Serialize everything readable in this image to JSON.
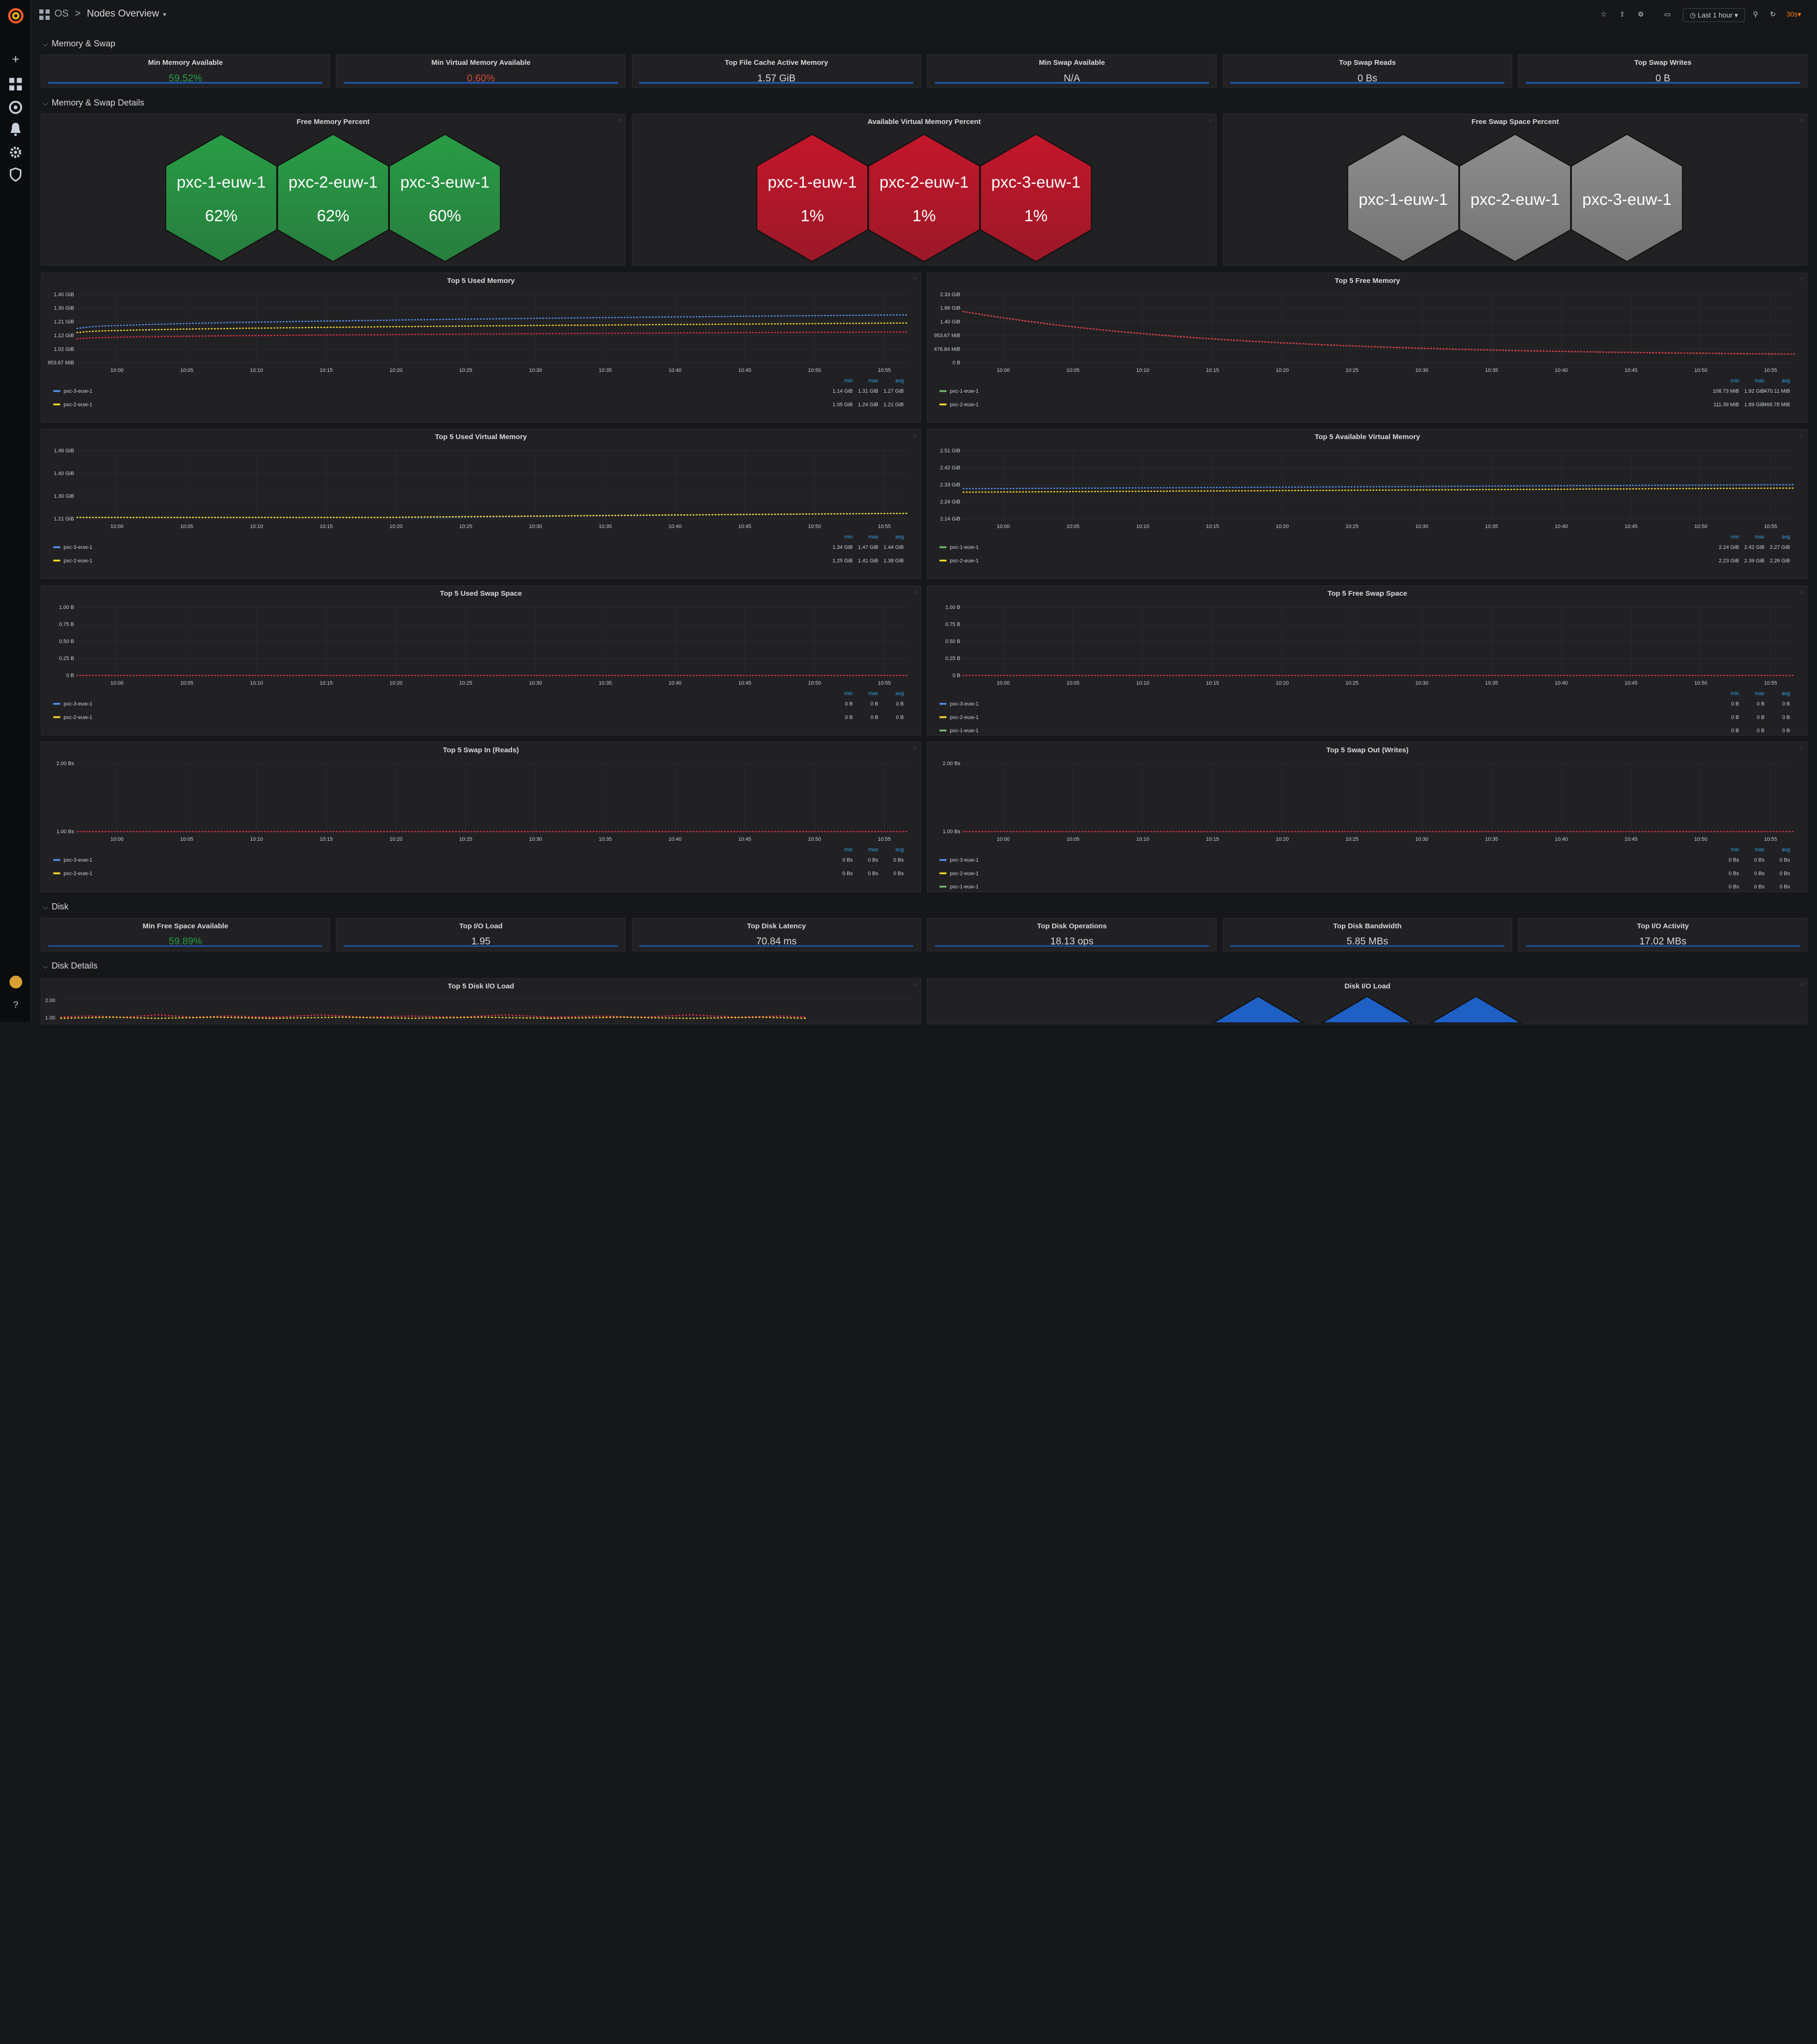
{
  "breadcrumb": {
    "folder": "OS",
    "sep": ">",
    "title": "Nodes Overview"
  },
  "toolbar": {
    "time_range": "Last 1 hour",
    "refresh": "30s"
  },
  "sections": {
    "memory_swap": "Memory & Swap",
    "memory_swap_details": "Memory & Swap Details",
    "disk": "Disk",
    "disk_details": "Disk Details"
  },
  "stats_mem": [
    {
      "title": "Min Memory Available",
      "value": "59.52%",
      "color": "#299c46"
    },
    {
      "title": "Min Virtual Memory Available",
      "value": "0.60%",
      "color": "#d44a3a"
    },
    {
      "title": "Top File Cache Active Memory",
      "value": "1.57 GiB",
      "color": "#d8d9da"
    },
    {
      "title": "Min Swap Available",
      "value": "N/A",
      "color": "#d8d9da"
    },
    {
      "title": "Top Swap Reads",
      "value": "0 Bs",
      "color": "#d8d9da"
    },
    {
      "title": "Top Swap Writes",
      "value": "0 B",
      "color": "#d8d9da"
    }
  ],
  "stats_disk": [
    {
      "title": "Min Free Space Available",
      "value": "59.89%",
      "color": "#299c46"
    },
    {
      "title": "Top I/O Load",
      "value": "1.95",
      "color": "#d8d9da"
    },
    {
      "title": "Top Disk Latency",
      "value": "70.84 ms",
      "color": "#d8d9da"
    },
    {
      "title": "Top Disk Operations",
      "value": "18.13 ops",
      "color": "#d8d9da"
    },
    {
      "title": "Top Disk Bandwidth",
      "value": "5.85 MBs",
      "color": "#d8d9da"
    },
    {
      "title": "Top I/O Activity",
      "value": "17.02 MBs",
      "color": "#d8d9da"
    }
  ],
  "hexpanels": [
    {
      "title": "Free Memory Percent",
      "color": "#299c46",
      "nodes": [
        {
          "name": "pxc-1-euw-1",
          "value": "62%"
        },
        {
          "name": "pxc-2-euw-1",
          "value": "62%"
        },
        {
          "name": "pxc-3-euw-1",
          "value": "60%"
        }
      ]
    },
    {
      "title": "Available Virtual Memory Percent",
      "color": "#c4162a",
      "nodes": [
        {
          "name": "pxc-1-euw-1",
          "value": "1%"
        },
        {
          "name": "pxc-2-euw-1",
          "value": "1%"
        },
        {
          "name": "pxc-3-euw-1",
          "value": "1%"
        }
      ]
    },
    {
      "title": "Free Swap Space Percent",
      "color": "#8e8e8e",
      "nodes": [
        {
          "name": "pxc-1-euw-1",
          "value": ""
        },
        {
          "name": "pxc-2-euw-1",
          "value": ""
        },
        {
          "name": "pxc-3-euw-1",
          "value": ""
        }
      ]
    }
  ],
  "xticks": [
    "10:00",
    "10:05",
    "10:10",
    "10:15",
    "10:20",
    "10:25",
    "10:30",
    "10:35",
    "10:40",
    "10:45",
    "10:50",
    "10:55"
  ],
  "legend_headers": [
    "min",
    "max",
    "avg"
  ],
  "graphs": [
    {
      "title": "Top 5 Used Memory",
      "yticks": [
        "1.40 GiB",
        "1.30 GiB",
        "1.21 GiB",
        "1.12 GiB",
        "1.02 GiB",
        "953.67 MiB"
      ],
      "legend": [
        {
          "name": "pxc-3-euw-1",
          "color": "#5794f2",
          "vals": [
            "1.14 GiB",
            "1.31 GiB",
            "1.27 GiB"
          ]
        },
        {
          "name": "pxc-2-euw-1",
          "color": "#fade2a",
          "vals": [
            "1.05 GiB",
            "1.24 GiB",
            "1.21 GiB"
          ]
        }
      ]
    },
    {
      "title": "Top 5 Free Memory",
      "yticks": [
        "2.33 GiB",
        "1.86 GiB",
        "1.40 GiB",
        "953.67 MiB",
        "476.84 MiB",
        "0 B"
      ],
      "legend": [
        {
          "name": "pxc-1-euw-1",
          "color": "#73bf69",
          "vals": [
            "108.73 MiB",
            "1.92 GiB",
            "470.11 MiB"
          ]
        },
        {
          "name": "pxc-2-euw-1",
          "color": "#fade2a",
          "vals": [
            "111.39 MiB",
            "1.89 GiB",
            "468.78 MiB"
          ]
        }
      ]
    },
    {
      "title": "Top 5 Used Virtual Memory",
      "yticks": [
        "1.49 GiB",
        "1.40 GiB",
        "1.30 GiB",
        "1.21 GiB"
      ],
      "legend": [
        {
          "name": "pxc-3-euw-1",
          "color": "#5794f2",
          "vals": [
            "1.34 GiB",
            "1.47 GiB",
            "1.44 GiB"
          ]
        },
        {
          "name": "pxc-2-euw-1",
          "color": "#fade2a",
          "vals": [
            "1.25 GiB",
            "1.41 GiB",
            "1.38 GiB"
          ]
        }
      ]
    },
    {
      "title": "Top 5 Available Virtual Memory",
      "yticks": [
        "2.51 GiB",
        "2.42 GiB",
        "2.33 GiB",
        "2.24 GiB",
        "2.14 GiB"
      ],
      "legend": [
        {
          "name": "pxc-1-euw-1",
          "color": "#73bf69",
          "vals": [
            "2.24 GiB",
            "2.42 GiB",
            "2.27 GiB"
          ]
        },
        {
          "name": "pxc-2-euw-1",
          "color": "#fade2a",
          "vals": [
            "2.23 GiB",
            "2.39 GiB",
            "2.26 GiB"
          ]
        }
      ]
    },
    {
      "title": "Top 5 Used Swap Space",
      "yticks": [
        "1.00 B",
        "0.75 B",
        "0.50 B",
        "0.25 B",
        "0 B"
      ],
      "legend": [
        {
          "name": "pxc-3-euw-1",
          "color": "#5794f2",
          "vals": [
            "0 B",
            "0 B",
            "0 B"
          ]
        },
        {
          "name": "pxc-2-euw-1",
          "color": "#fade2a",
          "vals": [
            "0 B",
            "0 B",
            "0 B"
          ]
        }
      ]
    },
    {
      "title": "Top 5 Free Swap Space",
      "yticks": [
        "1.00 B",
        "0.75 B",
        "0.50 B",
        "0.25 B",
        "0 B"
      ],
      "legend": [
        {
          "name": "pxc-3-euw-1",
          "color": "#5794f2",
          "vals": [
            "0 B",
            "0 B",
            "0 B"
          ]
        },
        {
          "name": "pxc-2-euw-1",
          "color": "#fade2a",
          "vals": [
            "0 B",
            "0 B",
            "0 B"
          ]
        },
        {
          "name": "pxc-1-euw-1",
          "color": "#73bf69",
          "vals": [
            "0 B",
            "0 B",
            "0 B"
          ]
        }
      ]
    },
    {
      "title": "Top 5 Swap In (Reads)",
      "yticks": [
        "2.00 Bs",
        "1.00 Bs"
      ],
      "legend": [
        {
          "name": "pxc-3-euw-1",
          "color": "#5794f2",
          "vals": [
            "0 Bs",
            "0 Bs",
            "0 Bs"
          ]
        },
        {
          "name": "pxc-2-euw-1",
          "color": "#fade2a",
          "vals": [
            "0 Bs",
            "0 Bs",
            "0 Bs"
          ]
        }
      ]
    },
    {
      "title": "Top 5 Swap Out (Writes)",
      "yticks": [
        "2.00 Bs",
        "1.00 Bs"
      ],
      "legend": [
        {
          "name": "pxc-3-euw-1",
          "color": "#5794f2",
          "vals": [
            "0 Bs",
            "0 Bs",
            "0 Bs"
          ]
        },
        {
          "name": "pxc-2-euw-1",
          "color": "#fade2a",
          "vals": [
            "0 Bs",
            "0 Bs",
            "0 Bs"
          ]
        },
        {
          "name": "pxc-1-euw-1",
          "color": "#73bf69",
          "vals": [
            "0 Bs",
            "0 Bs",
            "0 Bs"
          ]
        }
      ]
    }
  ],
  "disk_graphs": [
    {
      "title": "Top 5 Disk I/O Load",
      "yticks": [
        "2.00",
        "1.00"
      ]
    },
    {
      "title": "Disk I/O Load"
    }
  ]
}
